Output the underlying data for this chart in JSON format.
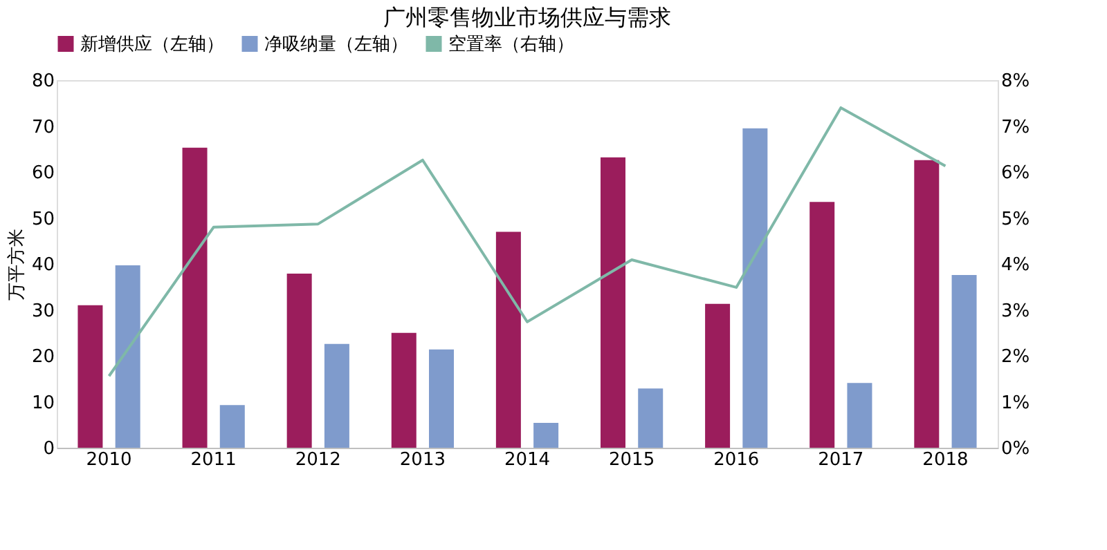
{
  "chart_data": {
    "type": "bar",
    "title": "广州零售物业市场供应与需求",
    "ylabel": "万平方米",
    "categories": [
      "2010",
      "2011",
      "2012",
      "2013",
      "2014",
      "2015",
      "2016",
      "2017",
      "2018"
    ],
    "series": [
      {
        "name": "新增供应（左轴）",
        "color": "#9b1d5c",
        "values": [
          31,
          65.3,
          37.9,
          25,
          47,
          63.2,
          31.3,
          53.5,
          62.6
        ]
      },
      {
        "name": "净吸纳量（左轴）",
        "color": "#7f9bcc",
        "values": [
          39.7,
          9.3,
          22.6,
          21.4,
          5.4,
          12.9,
          69.5,
          14.1,
          37.6
        ]
      },
      {
        "name": "空置率（右轴）",
        "color": "#7fb8a8",
        "type": "line",
        "axis": "y2",
        "values": [
          1.56,
          4.8,
          4.87,
          6.26,
          2.74,
          4.09,
          3.49,
          7.4,
          6.13
        ]
      }
    ],
    "ylim": [
      0,
      80
    ],
    "yticks": [
      0,
      10,
      20,
      30,
      40,
      50,
      60,
      70,
      80
    ],
    "y2lim": [
      0,
      8
    ],
    "y2ticks": [
      {
        "value": 0,
        "label": "0%"
      },
      {
        "value": 1,
        "label": "1%"
      },
      {
        "value": 2,
        "label": "2%"
      },
      {
        "value": 3,
        "label": "3%"
      },
      {
        "value": 4,
        "label": "4%"
      },
      {
        "value": 5,
        "label": "5%"
      },
      {
        "value": 6,
        "label": "6%"
      },
      {
        "value": 7,
        "label": "7%"
      },
      {
        "value": 8,
        "label": "8%"
      }
    ],
    "legend": "top",
    "grid": false
  }
}
